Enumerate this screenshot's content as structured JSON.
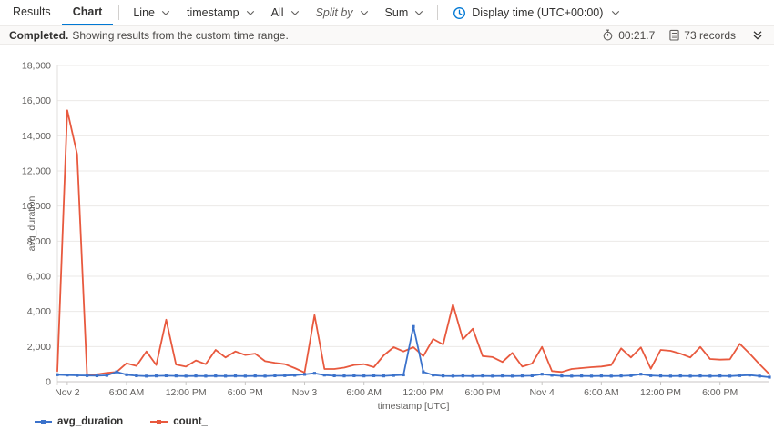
{
  "tabs": {
    "results": "Results",
    "chart": "Chart"
  },
  "toolbar": {
    "chart_type": "Line",
    "x_column": "timestamp",
    "y_column": "All",
    "split_by": "Split by",
    "aggregation": "Sum",
    "display_time": "Display time (UTC+00:00)"
  },
  "status": {
    "completed": "Completed.",
    "message": "Showing results from the custom time range.",
    "duration": "00:21.7",
    "records": "73 records"
  },
  "colors": {
    "accent": "#0078d4",
    "series_avg_duration": "#3b72cb",
    "series_count": "#e8593e",
    "gridline": "#ebe9e7",
    "axis_line": "#c8c6c4",
    "axis_text": "#605e5c"
  },
  "chart_data": {
    "type": "line",
    "xlabel": "timestamp [UTC]",
    "ylabel": "avg_duration",
    "ylim": [
      0,
      18000
    ],
    "grid": true,
    "legend_position": "bottom",
    "y_tick_values": [
      0,
      2000,
      4000,
      6000,
      8000,
      10000,
      12000,
      14000,
      16000,
      18000
    ],
    "y_tick_labels": [
      "0",
      "2,000",
      "4,000",
      "6,000",
      "8,000",
      "10,000",
      "12,000",
      "14,000",
      "16,000",
      "18,000"
    ],
    "x_tick_labels": [
      "Nov 2",
      "6:00 AM",
      "12:00 PM",
      "6:00 PM",
      "Nov 3",
      "6:00 AM",
      "12:00 PM",
      "6:00 PM",
      "Nov 4",
      "6:00 AM",
      "12:00 PM",
      "6:00 PM"
    ],
    "x_tick_indices": [
      1,
      7,
      13,
      19,
      25,
      31,
      37,
      43,
      49,
      55,
      61,
      67
    ],
    "series": [
      {
        "name": "avg_duration",
        "color": "#3b72cb",
        "point_markers": true,
        "values": [
          400,
          380,
          360,
          350,
          340,
          360,
          560,
          400,
          340,
          320,
          330,
          340,
          330,
          320,
          330,
          320,
          330,
          320,
          330,
          320,
          330,
          320,
          340,
          350,
          370,
          420,
          480,
          380,
          340,
          330,
          340,
          330,
          340,
          330,
          360,
          390,
          3140,
          560,
          380,
          330,
          320,
          330,
          320,
          330,
          320,
          330,
          320,
          330,
          340,
          430,
          370,
          330,
          320,
          330,
          320,
          330,
          320,
          330,
          350,
          430,
          350,
          330,
          320,
          330,
          320,
          330,
          320,
          330,
          320,
          350,
          380,
          320,
          260
        ]
      },
      {
        "name": "count_",
        "color": "#e8593e",
        "point_markers": false,
        "values": [
          600,
          15450,
          12950,
          350,
          420,
          500,
          560,
          1050,
          900,
          1720,
          950,
          3530,
          980,
          860,
          1210,
          1000,
          1810,
          1380,
          1720,
          1520,
          1600,
          1170,
          1070,
          1000,
          775,
          520,
          3790,
          724,
          724,
          800,
          950,
          1000,
          830,
          1500,
          1965,
          1720,
          1965,
          1460,
          2430,
          2120,
          4395,
          2410,
          3015,
          1460,
          1400,
          1120,
          1640,
          860,
          1034,
          1980,
          605,
          553,
          724,
          775,
          827,
          863,
          946,
          1897,
          1380,
          1949,
          740,
          1810,
          1760,
          1600,
          1380,
          1980,
          1293,
          1258,
          1280,
          2156,
          1600,
          1000,
          430
        ]
      }
    ]
  }
}
